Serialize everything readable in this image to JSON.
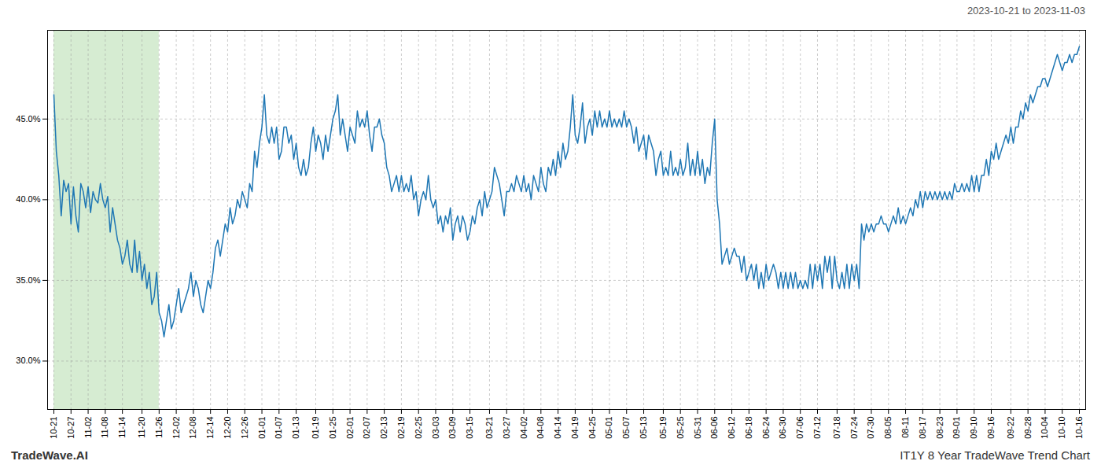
{
  "chart_data": {
    "type": "line",
    "title": "IT1Y 8 Year TradeWave Trend Chart",
    "subtitle": "2023-10-21 to 2023-11-03",
    "caption": "TradeWave.AI",
    "color": "#1f77b4",
    "grid": true,
    "highlight": {
      "from": "10-21",
      "to": "11-26",
      "color": "#d6ecd2"
    },
    "ylim": [
      27.0,
      50.5
    ],
    "yticks": [
      {
        "value": 30.0,
        "label": "30.0%"
      },
      {
        "value": 35.0,
        "label": "35.0%"
      },
      {
        "value": 40.0,
        "label": "40.0%"
      },
      {
        "value": 45.0,
        "label": "45.0%"
      }
    ],
    "categories": [
      "10-21",
      null,
      null,
      null,
      null,
      null,
      null,
      "10-27",
      null,
      null,
      null,
      null,
      null,
      null,
      "11-02",
      null,
      null,
      null,
      null,
      null,
      null,
      "11-08",
      null,
      null,
      null,
      null,
      null,
      null,
      "11-14",
      null,
      null,
      null,
      null,
      null,
      null,
      null,
      "11-20",
      null,
      null,
      null,
      null,
      null,
      null,
      "11-26",
      null,
      null,
      null,
      null,
      null,
      null,
      "12-02",
      null,
      null,
      null,
      null,
      null,
      null,
      "12-08",
      null,
      null,
      null,
      null,
      null,
      null,
      "12-14",
      null,
      null,
      null,
      null,
      null,
      null,
      "12-20",
      null,
      null,
      null,
      null,
      null,
      null,
      "12-26",
      null,
      null,
      null,
      null,
      null,
      null,
      "01-01",
      null,
      null,
      null,
      null,
      null,
      null,
      "01-07",
      null,
      null,
      null,
      null,
      null,
      null,
      "01-13",
      null,
      null,
      null,
      null,
      null,
      null,
      null,
      "01-19",
      null,
      null,
      null,
      null,
      null,
      null,
      "01-25",
      null,
      null,
      null,
      null,
      null,
      null,
      "02-01",
      null,
      null,
      null,
      null,
      null,
      null,
      "02-07",
      null,
      null,
      null,
      null,
      null,
      null,
      "02-13",
      null,
      null,
      null,
      null,
      null,
      null,
      "02-19",
      null,
      null,
      null,
      null,
      null,
      null,
      "02-25",
      null,
      null,
      null,
      null,
      null,
      null,
      "03-03",
      null,
      null,
      null,
      null,
      null,
      null,
      "03-09",
      null,
      null,
      null,
      null,
      null,
      null,
      "03-15",
      null,
      null,
      null,
      null,
      null,
      null,
      null,
      "03-21",
      null,
      null,
      null,
      null,
      null,
      null,
      "03-27",
      null,
      null,
      null,
      null,
      null,
      null,
      "04-02",
      null,
      null,
      null,
      null,
      null,
      null,
      "04-08",
      null,
      null,
      null,
      null,
      null,
      null,
      "04-14",
      null,
      null,
      null,
      null,
      null,
      null,
      "04-19",
      null,
      null,
      null,
      null,
      null,
      null,
      "04-25",
      null,
      null,
      null,
      null,
      null,
      null,
      "05-01",
      null,
      null,
      null,
      null,
      null,
      null,
      "05-07",
      null,
      null,
      null,
      null,
      null,
      null,
      "05-13",
      null,
      null,
      null,
      null,
      null,
      null,
      null,
      "05-19",
      null,
      null,
      null,
      null,
      null,
      null,
      "05-25",
      null,
      null,
      null,
      null,
      null,
      null,
      "05-31",
      null,
      null,
      null,
      null,
      null,
      null,
      "06-06",
      null,
      null,
      null,
      null,
      null,
      null,
      "06-12",
      null,
      null,
      null,
      null,
      null,
      null,
      "06-18",
      null,
      null,
      null,
      null,
      null,
      null,
      "06-24",
      null,
      null,
      null,
      null,
      null,
      null,
      "06-30",
      null,
      null,
      null,
      null,
      null,
      null,
      "07-06",
      null,
      null,
      null,
      null,
      null,
      null,
      "07-12",
      null,
      null,
      null,
      null,
      null,
      null,
      null,
      "07-18",
      null,
      null,
      null,
      null,
      null,
      null,
      "07-24",
      null,
      null,
      null,
      null,
      null,
      null,
      "07-30",
      null,
      null,
      null,
      null,
      null,
      null,
      "08-05",
      null,
      null,
      null,
      null,
      null,
      null,
      "08-11",
      null,
      null,
      null,
      null,
      null,
      null,
      "08-17",
      null,
      null,
      null,
      null,
      null,
      null,
      "08-23",
      null,
      null,
      null,
      null,
      null,
      null,
      "09-01",
      null,
      null,
      null,
      null,
      null,
      null,
      "09-10",
      null,
      null,
      null,
      null,
      null,
      null,
      "09-16",
      null,
      null,
      null,
      null,
      null,
      null,
      null,
      "09-22",
      null,
      null,
      null,
      null,
      null,
      null,
      "09-28",
      null,
      null,
      null,
      null,
      null,
      null,
      "10-04",
      null,
      null,
      null,
      null,
      null,
      null,
      "10-10",
      null,
      null,
      null,
      null,
      null,
      null,
      "10-16"
    ],
    "values": [
      46.5,
      43.0,
      41.5,
      39.0,
      41.2,
      40.5,
      41.0,
      38.5,
      40.8,
      39.0,
      38.0,
      41.0,
      40.5,
      39.5,
      40.8,
      39.2,
      40.5,
      40.0,
      39.8,
      41.0,
      40.0,
      39.5,
      40.2,
      38.0,
      39.5,
      38.5,
      37.5,
      37.0,
      36.0,
      36.5,
      37.5,
      36.0,
      35.5,
      37.5,
      35.5,
      36.8,
      35.0,
      36.0,
      34.5,
      35.5,
      33.5,
      34.0,
      35.5,
      33.0,
      32.5,
      31.5,
      32.5,
      33.5,
      32.0,
      32.5,
      33.5,
      34.5,
      33.0,
      33.5,
      34.0,
      34.5,
      35.5,
      34.0,
      35.0,
      34.5,
      33.5,
      33.0,
      34.0,
      35.0,
      34.5,
      35.5,
      37.0,
      37.5,
      36.5,
      37.5,
      38.5,
      38.0,
      39.5,
      38.5,
      39.0,
      40.0,
      39.5,
      40.5,
      40.0,
      39.5,
      41.0,
      40.5,
      43.0,
      42.0,
      43.5,
      44.5,
      46.5,
      44.0,
      43.5,
      44.5,
      43.5,
      44.5,
      42.5,
      43.0,
      44.5,
      44.5,
      43.5,
      44.0,
      42.5,
      43.5,
      42.0,
      41.5,
      42.5,
      41.5,
      42.0,
      43.5,
      44.5,
      43.0,
      44.0,
      43.5,
      42.5,
      44.0,
      43.0,
      44.0,
      45.0,
      45.5,
      46.5,
      44.0,
      45.0,
      44.0,
      43.0,
      44.5,
      44.0,
      43.5,
      45.5,
      44.5,
      45.0,
      44.5,
      45.5,
      44.0,
      43.0,
      44.5,
      44.5,
      45.0,
      44.0,
      43.5,
      42.0,
      41.5,
      40.5,
      41.0,
      41.5,
      40.5,
      41.5,
      40.5,
      41.0,
      40.5,
      41.5,
      40.0,
      40.5,
      39.0,
      40.0,
      40.5,
      40.0,
      41.5,
      40.0,
      39.5,
      40.0,
      38.5,
      39.0,
      38.0,
      39.0,
      38.5,
      39.5,
      37.5,
      38.5,
      39.0,
      38.0,
      39.0,
      38.5,
      37.5,
      38.0,
      39.0,
      38.5,
      39.5,
      40.0,
      39.0,
      40.5,
      39.5,
      40.0,
      40.5,
      42.0,
      41.5,
      41.0,
      40.0,
      39.0,
      40.5,
      40.5,
      41.0,
      40.5,
      41.5,
      41.0,
      40.5,
      41.5,
      40.5,
      41.0,
      40.0,
      41.5,
      41.0,
      40.5,
      42.0,
      41.0,
      40.5,
      42.0,
      41.5,
      42.5,
      41.5,
      43.0,
      42.0,
      43.5,
      42.5,
      43.0,
      44.5,
      46.5,
      44.0,
      43.5,
      44.5,
      46.0,
      43.5,
      44.5,
      45.0,
      44.0,
      45.5,
      44.5,
      45.5,
      44.5,
      45.0,
      44.5,
      45.5,
      44.5,
      45.0,
      44.5,
      45.0,
      44.5,
      45.5,
      44.5,
      45.0,
      44.5,
      43.5,
      44.5,
      43.0,
      43.5,
      44.0,
      42.5,
      44.0,
      43.5,
      43.0,
      41.5,
      42.5,
      43.0,
      41.5,
      42.0,
      41.5,
      43.0,
      41.5,
      42.0,
      41.5,
      42.5,
      41.5,
      42.0,
      43.5,
      41.5,
      42.5,
      41.5,
      43.0,
      41.5,
      42.5,
      41.0,
      42.0,
      41.5,
      43.5,
      45.0,
      40.0,
      38.5,
      36.0,
      36.5,
      37.0,
      36.0,
      36.5,
      37.0,
      36.5,
      36.5,
      35.5,
      36.5,
      35.0,
      35.5,
      36.0,
      35.0,
      36.0,
      34.5,
      35.5,
      34.5,
      36.0,
      35.0,
      35.5,
      36.0,
      35.5,
      34.5,
      35.5,
      34.5,
      35.5,
      34.5,
      35.5,
      34.5,
      35.5,
      34.5,
      35.0,
      34.5,
      35.0,
      34.5,
      36.0,
      34.5,
      36.0,
      35.0,
      36.0,
      34.5,
      36.5,
      35.5,
      36.5,
      34.5,
      36.5,
      35.0,
      34.5,
      35.5,
      34.5,
      36.0,
      34.5,
      36.0,
      35.0,
      36.0,
      34.5,
      38.5,
      37.5,
      38.5,
      38.0,
      38.5,
      38.0,
      38.5,
      38.5,
      39.0,
      38.5,
      38.5,
      38.0,
      38.5,
      39.0,
      38.5,
      39.5,
      38.5,
      39.0,
      38.5,
      39.0,
      39.5,
      39.0,
      40.0,
      39.5,
      40.5,
      39.5,
      40.5,
      40.0,
      40.5,
      40.0,
      40.5,
      40.0,
      40.5,
      40.0,
      40.5,
      40.0,
      40.5,
      40.0,
      41.0,
      40.5,
      40.5,
      41.0,
      40.5,
      41.0,
      40.5,
      41.5,
      40.5,
      41.5,
      40.5,
      41.5,
      41.5,
      42.5,
      41.5,
      43.0,
      42.5,
      43.5,
      42.5,
      43.0,
      43.5,
      44.0,
      43.5,
      44.5,
      43.5,
      44.5,
      44.5,
      45.5,
      45.0,
      46.0,
      45.5,
      46.5,
      46.0,
      46.5,
      47.0,
      47.0,
      47.5,
      47.5,
      47.0,
      47.5,
      48.0,
      48.5,
      49.0,
      48.5,
      48.0,
      48.5,
      48.5,
      49.0,
      48.5,
      49.0,
      49.0,
      49.5
    ]
  }
}
